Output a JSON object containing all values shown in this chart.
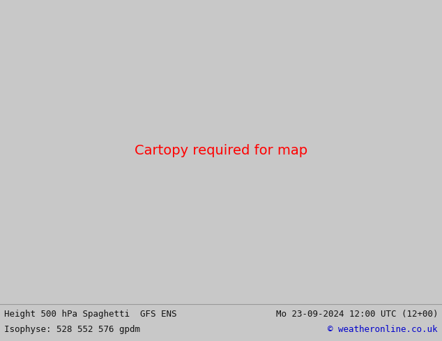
{
  "title_left": "Height 500 hPa Spaghetti  GFS ENS",
  "title_right": "Mo 23-09-2024 12:00 UTC (12+00)",
  "subtitle_left": "Isophyse: 528 552 576 gpdm",
  "subtitle_right": "© weatheronline.co.uk",
  "bg_color": "#c8c8c8",
  "ocean_color": "#c8c8c8",
  "land_color": "#b8e0b8",
  "us_land_color": "#c0e8c0",
  "border_color": "#888888",
  "state_border_color": "#aaaaaa",
  "bottom_bar_color": "#e8e8e8",
  "text_color": "#111111",
  "copyright_color": "#0000cc",
  "font_size_title": 9,
  "font_size_subtitle": 9,
  "fig_width": 6.34,
  "fig_height": 4.9,
  "dpi": 100
}
